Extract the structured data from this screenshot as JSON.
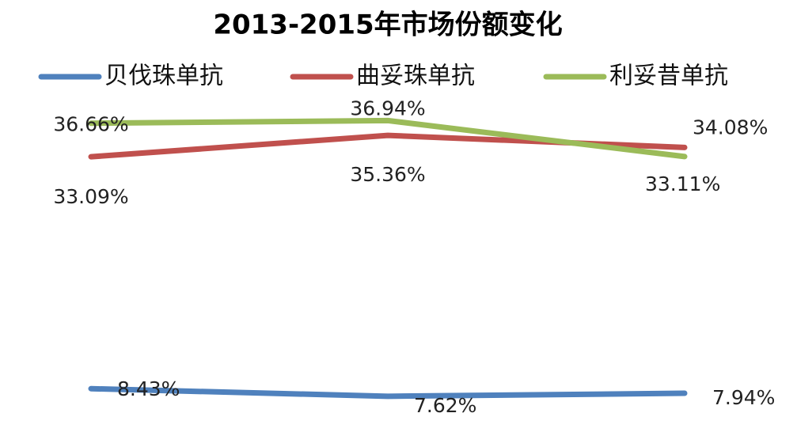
{
  "chart_data": {
    "type": "line",
    "title": "2013-2015年市场份额变化",
    "categories": [
      null,
      null,
      null
    ],
    "ylim": [
      5,
      40
    ],
    "series": [
      {
        "name": "贝伐珠单抗",
        "color": "#4f81bd",
        "values": [
          8.43,
          7.62,
          7.94
        ],
        "value_labels": [
          "8.43%",
          "7.62%",
          "7.94%"
        ]
      },
      {
        "name": "曲妥珠单抗",
        "color": "#c0504d",
        "values": [
          33.09,
          35.36,
          34.08
        ],
        "value_labels": [
          "33.09%",
          "35.36%",
          "34.08%"
        ]
      },
      {
        "name": "利妥昔单抗",
        "color": "#9bbb59",
        "values": [
          36.66,
          36.94,
          33.11
        ],
        "value_labels": [
          "36.66%",
          "36.94%",
          "33.11%"
        ]
      }
    ]
  }
}
